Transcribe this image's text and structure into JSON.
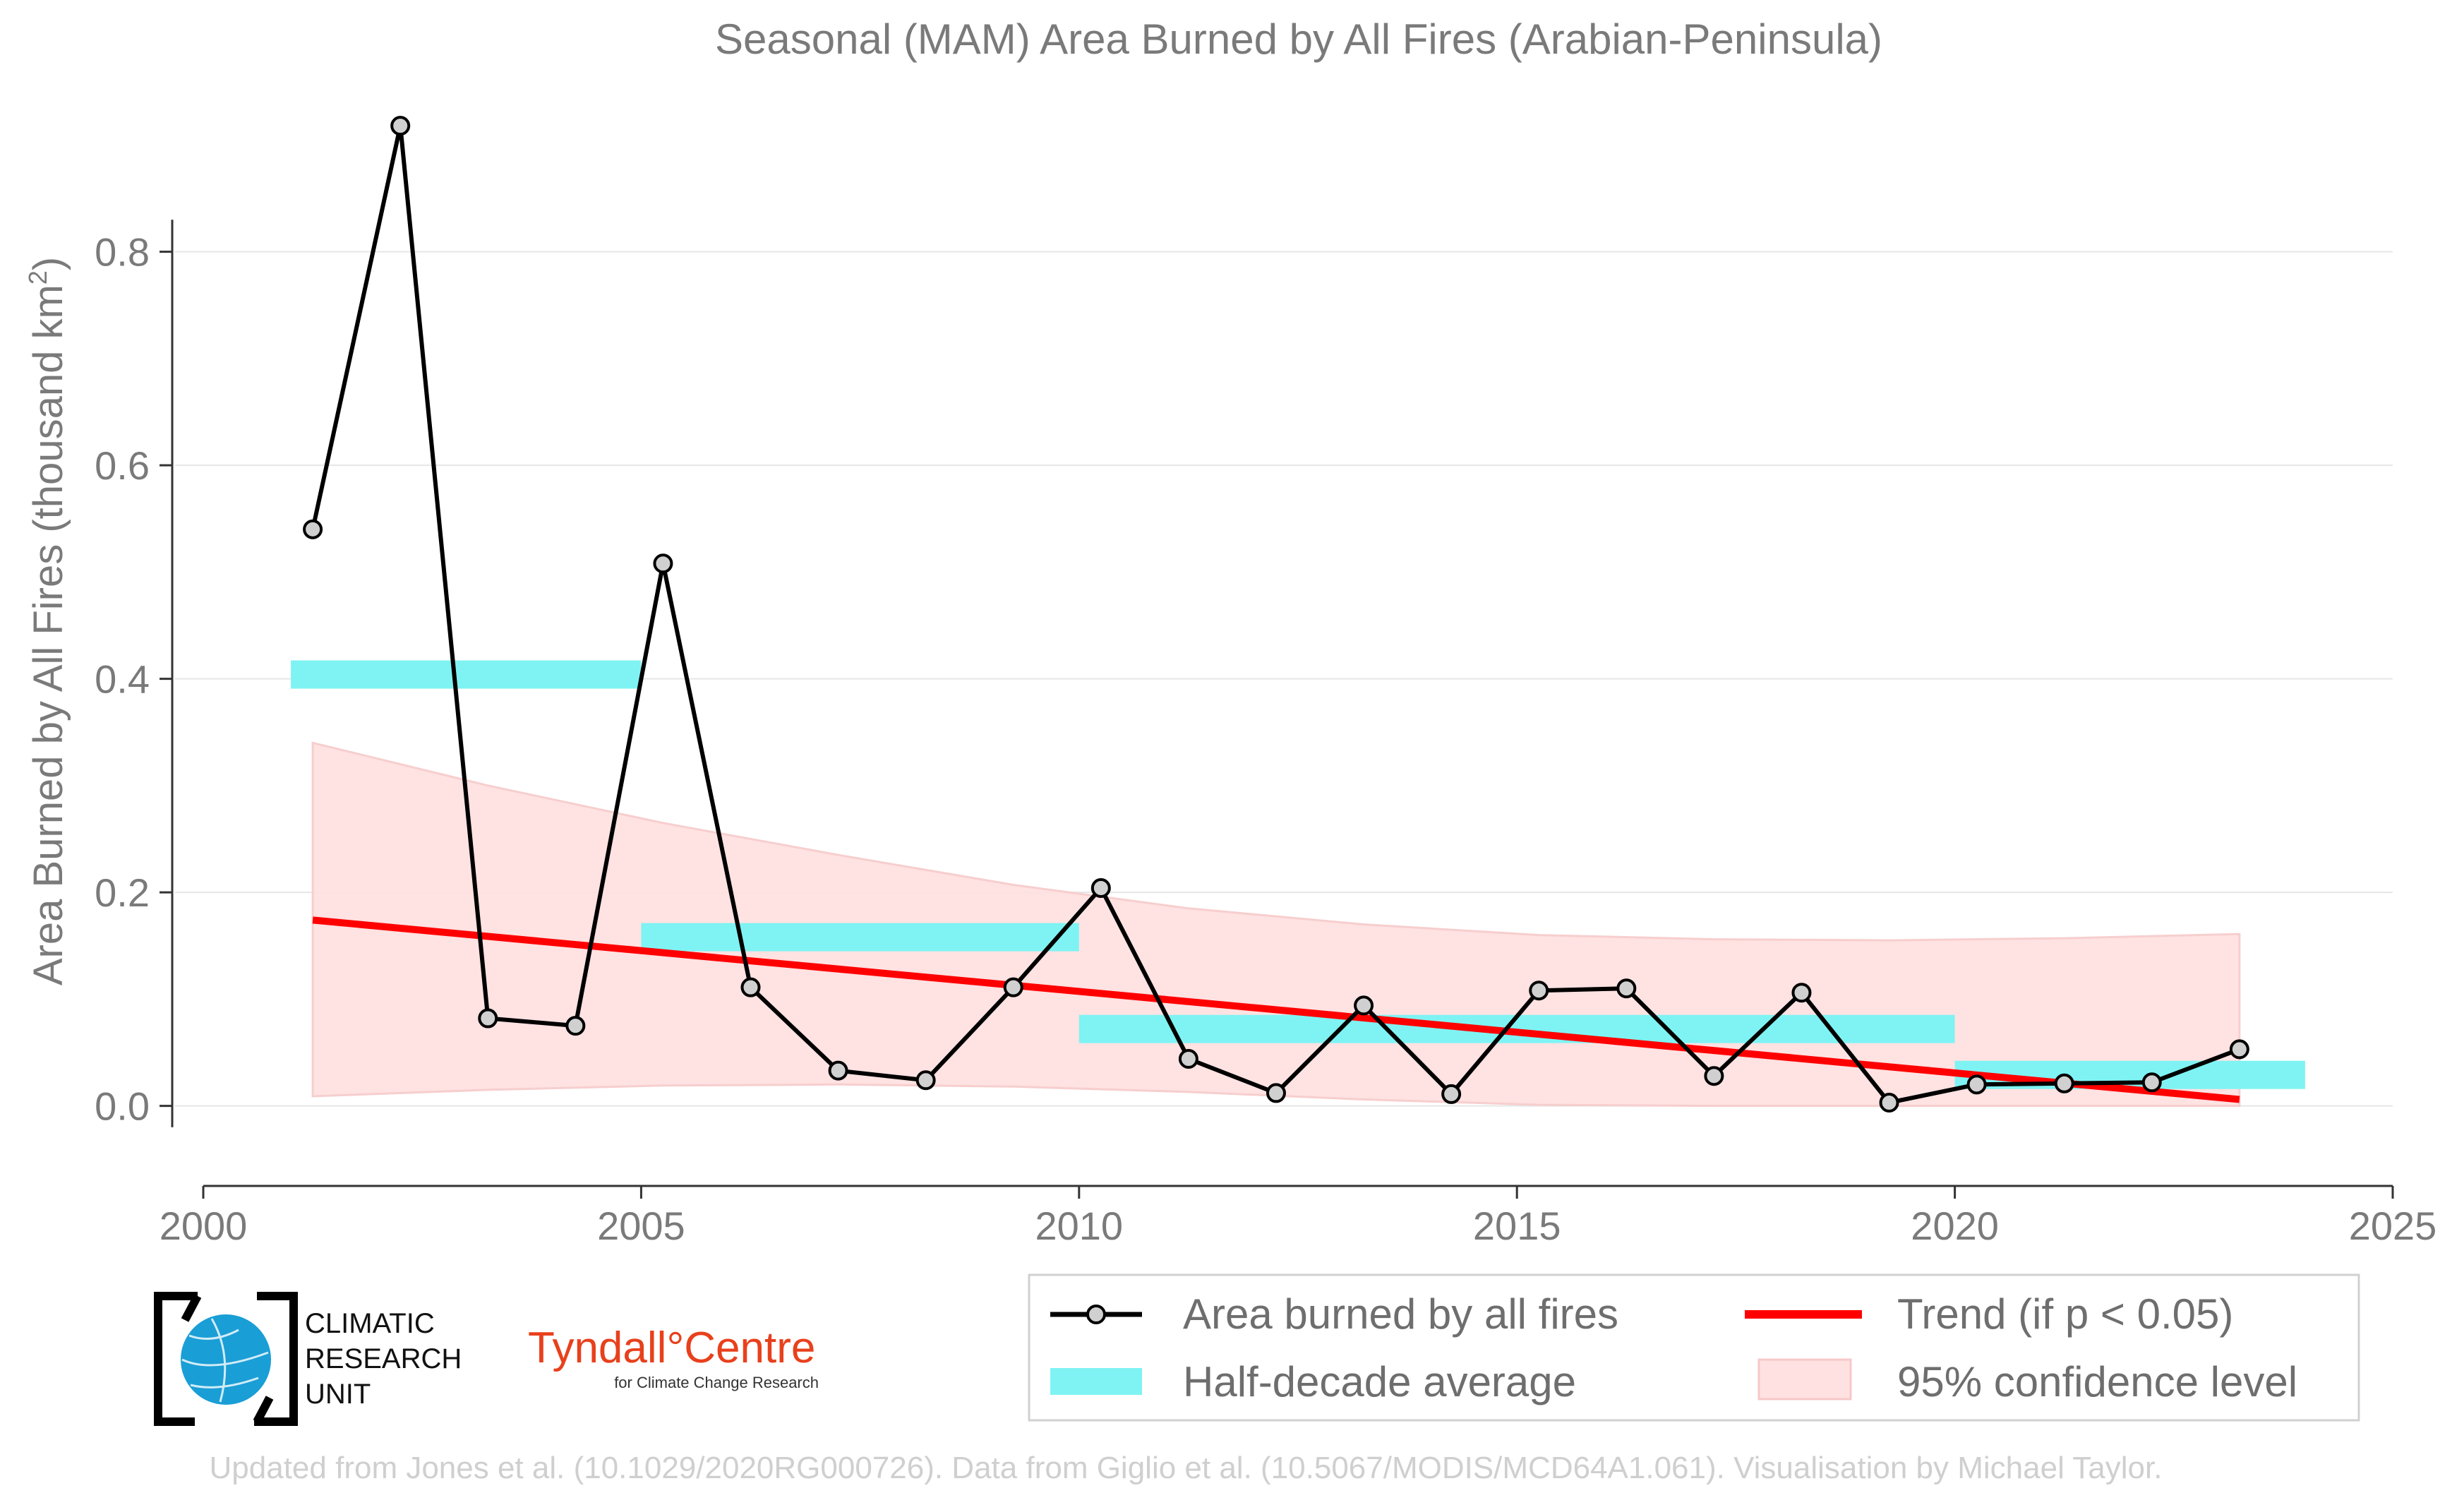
{
  "chart_data": {
    "type": "line",
    "title": "Seasonal (MAM) Area Burned by All Fires (Arabian-Peninsula)",
    "ylabel": "Area Burned by All Fires (thousand km",
    "ylabel_sup": "2",
    "ylabel_close": ")",
    "xlim": [
      2000,
      2025
    ],
    "ylim": [
      -0.075,
      0.93
    ],
    "x_ticks": [
      2000,
      2005,
      2010,
      2015,
      2020,
      2025
    ],
    "y_ticks": [
      0.0,
      0.2,
      0.4,
      0.6,
      0.8
    ],
    "y_tick_labels": [
      "0.0",
      "0.2",
      "0.4",
      "0.6",
      "0.8"
    ],
    "grid": "horizontal",
    "series": [
      {
        "name": "Area burned by all fires",
        "color": "#000000",
        "marker_fill": "#d0d0d0",
        "x": [
          2001.25,
          2002.25,
          2003.25,
          2004.25,
          2005.25,
          2006.25,
          2007.25,
          2008.25,
          2009.25,
          2010.25,
          2011.25,
          2012.25,
          2013.25,
          2014.25,
          2015.25,
          2016.25,
          2017.25,
          2018.25,
          2019.25,
          2020.25,
          2021.25,
          2022.25,
          2023.25
        ],
        "y": [
          0.54,
          0.918,
          0.082,
          0.075,
          0.508,
          0.111,
          0.033,
          0.024,
          0.111,
          0.204,
          0.044,
          0.012,
          0.094,
          0.011,
          0.108,
          0.11,
          0.028,
          0.106,
          0.003,
          0.02,
          0.021,
          0.022,
          0.053
        ]
      }
    ],
    "half_decade_average": {
      "name": "Half-decade average",
      "color": "#7ff3f3",
      "segments": [
        {
          "x0": 2001.0,
          "x1": 2005.0,
          "y": 0.404
        },
        {
          "x0": 2005.0,
          "x1": 2010.0,
          "y": 0.158
        },
        {
          "x0": 2010.0,
          "x1": 2020.0,
          "y": 0.072
        },
        {
          "x0": 2020.0,
          "x1": 2024.0,
          "y": 0.029
        }
      ]
    },
    "trend": {
      "name": "Trend (if p < 0.05)",
      "color": "#ff0000",
      "x": [
        2001.25,
        2023.25
      ],
      "y": [
        0.174,
        0.006
      ]
    },
    "confidence_band": {
      "name": "95% confidence level",
      "color": "#ffe1e1",
      "x": [
        2001.25,
        2003.25,
        2005.25,
        2007.25,
        2009.25,
        2011.25,
        2013.25,
        2015.25,
        2017.25,
        2019.25,
        2021.25,
        2023.25
      ],
      "upper": [
        0.34,
        0.3,
        0.265,
        0.235,
        0.207,
        0.185,
        0.17,
        0.16,
        0.156,
        0.155,
        0.157,
        0.161
      ],
      "lower": [
        0.009,
        0.015,
        0.019,
        0.02,
        0.018,
        0.013,
        0.006,
        0.001,
        0.0,
        0.0,
        0.0,
        0.0
      ]
    },
    "legend": {
      "placement": "bottom-right",
      "entries": [
        "Area burned by all fires",
        "Trend (if p < 0.05)",
        "Half-decade average",
        "95% confidence level"
      ]
    }
  },
  "logos": {
    "cru_line1": "CLIMATIC",
    "cru_line2": "RESEARCH",
    "cru_line3": "UNIT",
    "tyndall_main": "Tyndall°Centre",
    "tyndall_sub": "for Climate Change Research"
  },
  "credit": "Updated from Jones et al. (10.1029/2020RG000726). Data from Giglio et al. (10.5067/MODIS/MCD64A1.061). Visualisation by Michael Taylor."
}
